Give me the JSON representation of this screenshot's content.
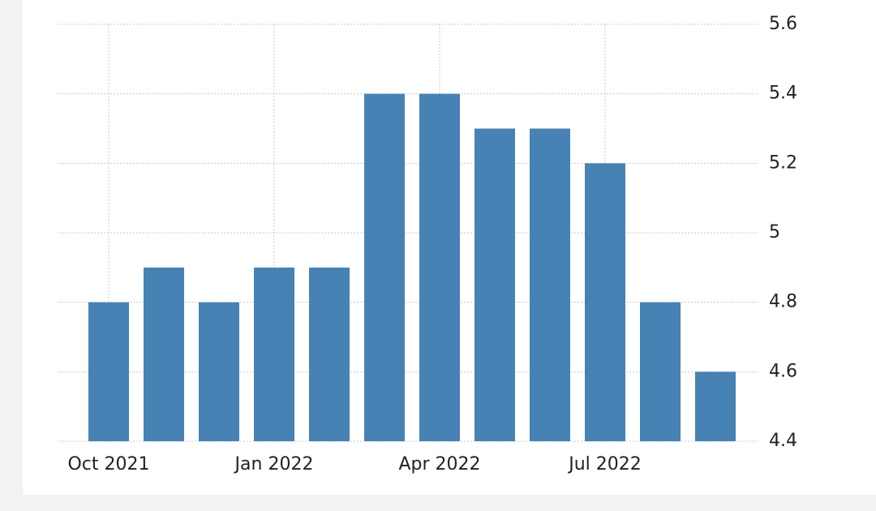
{
  "chart_data": {
    "type": "bar",
    "categories": [
      "Oct 2021",
      null,
      null,
      "Jan 2022",
      null,
      null,
      "Apr 2022",
      null,
      null,
      "Jul 2022",
      null,
      null
    ],
    "values": [
      4.8,
      4.9,
      4.8,
      4.9,
      4.9,
      5.4,
      5.4,
      5.3,
      5.3,
      5.2,
      4.8,
      4.6
    ],
    "color": "#4682b4",
    "ylim": [
      4.4,
      5.6
    ],
    "yticks": [
      4.4,
      4.6,
      4.8,
      5,
      5.2,
      5.4,
      5.6
    ],
    "grid": true
  }
}
